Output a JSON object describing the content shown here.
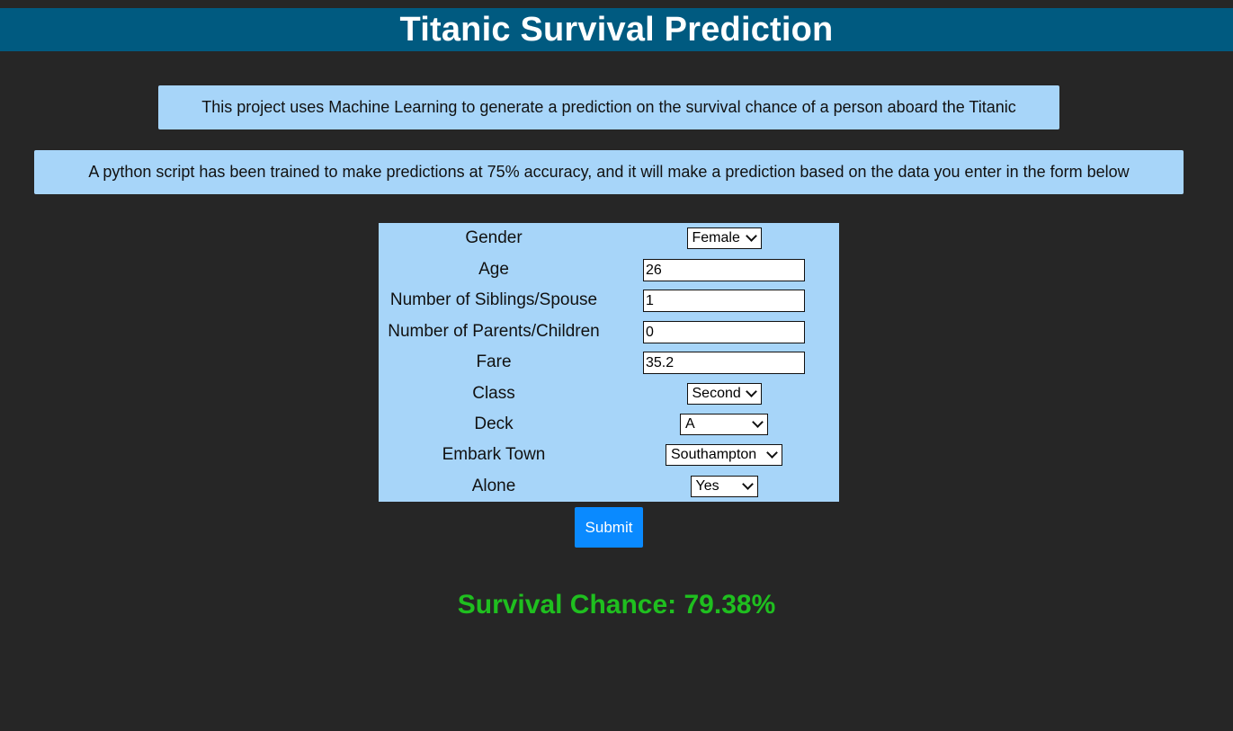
{
  "header": {
    "title": "Titanic Survival Prediction"
  },
  "intro": {
    "line1": "This project uses Machine Learning to generate a prediction on the survival chance of a person aboard the Titanic",
    "line2": "A python script has been trained to make predictions at 75% accuracy, and it will make a prediction based on the data you enter in the form below"
  },
  "form": {
    "gender": {
      "label": "Gender",
      "value": "Female"
    },
    "age": {
      "label": "Age",
      "value": "26"
    },
    "siblings": {
      "label": "Number of Siblings/Spouse",
      "value": "1"
    },
    "parents": {
      "label": "Number of Parents/Children",
      "value": "0"
    },
    "fare": {
      "label": "Fare",
      "value": "35.2"
    },
    "class": {
      "label": "Class",
      "value": "Second"
    },
    "deck": {
      "label": "Deck",
      "value": "A"
    },
    "embark": {
      "label": "Embark Town",
      "value": "Southampton"
    },
    "alone": {
      "label": "Alone",
      "value": "Yes"
    },
    "submit_label": "Submit"
  },
  "result": {
    "text": "Survival Chance: 79.38%"
  },
  "colors": {
    "background": "#262626",
    "header": "#005a80",
    "panel": "#a7d5f9",
    "submit": "#0a8aff",
    "result": "#1fbf1f"
  }
}
